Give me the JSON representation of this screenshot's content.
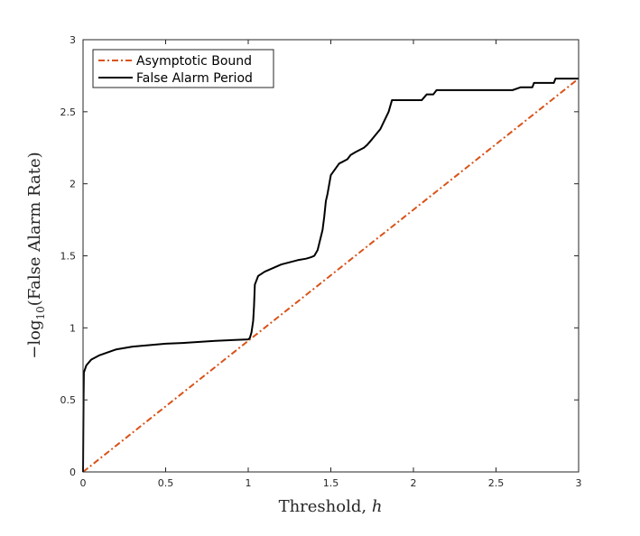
{
  "chart_data": {
    "type": "line",
    "title": "",
    "xlabel": "Threshold, h",
    "xlabel_prefix": "Threshold, ",
    "xlabel_var": "h",
    "ylabel": "−log10(False Alarm Rate)",
    "ylabel_prefix": "−log",
    "ylabel_sub": "10",
    "ylabel_rest": "(False Alarm Rate)",
    "xlim": [
      0,
      3
    ],
    "ylim": [
      0,
      3
    ],
    "xticks": [
      "0",
      "0.5",
      "1",
      "1.5",
      "2",
      "2.5",
      "3"
    ],
    "yticks": [
      "0",
      "0.5",
      "1",
      "1.5",
      "2",
      "2.5",
      "3"
    ],
    "grid": false,
    "legend_position": "top-left",
    "series": [
      {
        "name": "Asymptotic Bound",
        "color": "#d95319",
        "style": "dash-dot",
        "x": [
          0,
          3
        ],
        "y": [
          0,
          2.73
        ]
      },
      {
        "name": "False Alarm Period",
        "color": "#000000",
        "style": "solid",
        "x": [
          0,
          0.003,
          0.005,
          0.02,
          0.05,
          0.1,
          0.2,
          0.3,
          0.5,
          0.6,
          0.8,
          1.0,
          1.01,
          1.02,
          1.03,
          1.035,
          1.04,
          1.06,
          1.1,
          1.2,
          1.3,
          1.35,
          1.38,
          1.4,
          1.42,
          1.45,
          1.46,
          1.47,
          1.48,
          1.5,
          1.55,
          1.6,
          1.62,
          1.65,
          1.7,
          1.72,
          1.75,
          1.8,
          1.85,
          1.87,
          2.05,
          2.08,
          2.12,
          2.14,
          2.2,
          2.3,
          2.4,
          2.5,
          2.6,
          2.65,
          2.72,
          2.73,
          2.85,
          2.86,
          3.0
        ],
        "y": [
          0,
          0.5,
          0.69,
          0.74,
          0.78,
          0.81,
          0.85,
          0.87,
          0.89,
          0.895,
          0.91,
          0.92,
          0.93,
          0.97,
          1.05,
          1.15,
          1.3,
          1.36,
          1.39,
          1.44,
          1.47,
          1.48,
          1.49,
          1.5,
          1.54,
          1.68,
          1.77,
          1.88,
          1.93,
          2.06,
          2.14,
          2.17,
          2.2,
          2.22,
          2.25,
          2.27,
          2.31,
          2.38,
          2.5,
          2.58,
          2.58,
          2.62,
          2.62,
          2.65,
          2.65,
          2.65,
          2.65,
          2.65,
          2.65,
          2.67,
          2.67,
          2.7,
          2.7,
          2.73,
          2.73
        ]
      }
    ]
  }
}
